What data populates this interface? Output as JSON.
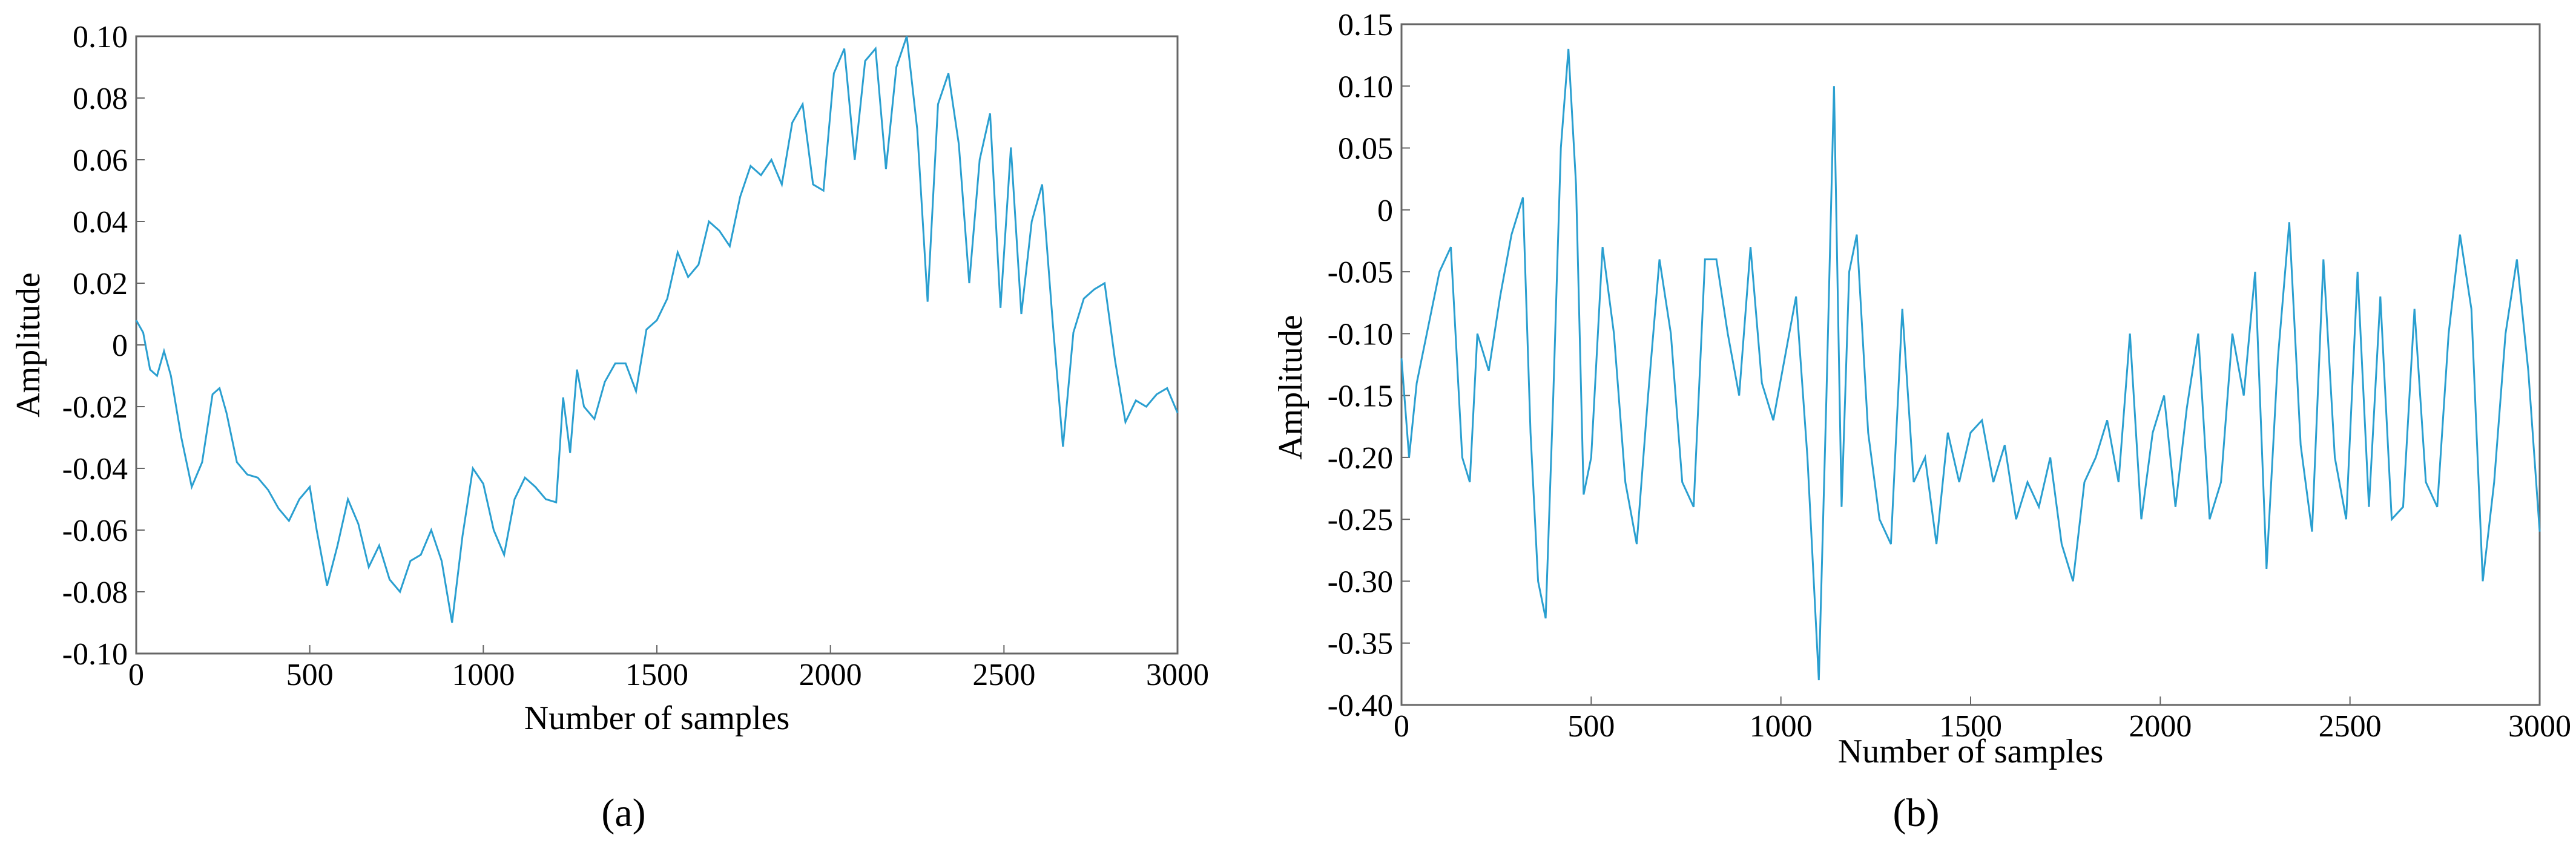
{
  "figure": {
    "panel_labels": [
      "(a)",
      "(b)"
    ]
  },
  "chart_data": [
    {
      "type": "line",
      "panel": "(a)",
      "title": "",
      "xlabel": "Number of samples",
      "ylabel": "Amplitude",
      "xlim": [
        0,
        3000
      ],
      "ylim": [
        -0.1,
        0.1
      ],
      "xticks": [
        0,
        500,
        1000,
        1500,
        2000,
        2500,
        3000
      ],
      "xtick_labels": [
        "0",
        "500",
        "1000",
        "1500",
        "2000",
        "2500",
        "3000"
      ],
      "yticks": [
        -0.1,
        -0.08,
        -0.06,
        -0.04,
        -0.02,
        0,
        0.02,
        0.04,
        0.06,
        0.08,
        0.1
      ],
      "ytick_labels": [
        "-0.10",
        "-0.08",
        "-0.06",
        "-0.04",
        "-0.02",
        "0",
        "0.02",
        "0.04",
        "0.06",
        "0.08",
        "0.10"
      ],
      "grid": false,
      "color": "#2a9fd0",
      "series": [
        {
          "x": [
            0,
            20,
            40,
            60,
            80,
            100,
            130,
            160,
            190,
            220,
            240,
            260,
            290,
            320,
            350,
            380,
            410,
            440,
            470,
            500,
            520,
            550,
            580,
            610,
            640,
            670,
            700,
            730,
            760,
            790,
            820,
            850,
            880,
            910,
            940,
            970,
            1000,
            1030,
            1060,
            1090,
            1120,
            1150,
            1180,
            1210,
            1230,
            1250,
            1270,
            1290,
            1320,
            1350,
            1380,
            1410,
            1440,
            1470,
            1500,
            1530,
            1560,
            1590,
            1620,
            1650,
            1680,
            1710,
            1740,
            1770,
            1800,
            1830,
            1860,
            1890,
            1920,
            1950,
            1980,
            2010,
            2040,
            2070,
            2100,
            2130,
            2160,
            2190,
            2220,
            2250,
            2280,
            2310,
            2340,
            2370,
            2400,
            2430,
            2460,
            2490,
            2520,
            2550,
            2580,
            2610,
            2640,
            2670,
            2700,
            2730,
            2760,
            2790,
            2820,
            2850,
            2880,
            2910,
            2940,
            2970,
            3000
          ],
          "y": [
            0.008,
            0.004,
            -0.008,
            -0.01,
            -0.002,
            -0.01,
            -0.03,
            -0.046,
            -0.038,
            -0.016,
            -0.014,
            -0.022,
            -0.038,
            -0.042,
            -0.043,
            -0.047,
            -0.053,
            -0.057,
            -0.05,
            -0.046,
            -0.06,
            -0.078,
            -0.065,
            -0.05,
            -0.058,
            -0.072,
            -0.065,
            -0.076,
            -0.08,
            -0.07,
            -0.068,
            -0.06,
            -0.07,
            -0.09,
            -0.062,
            -0.04,
            -0.045,
            -0.06,
            -0.068,
            -0.05,
            -0.043,
            -0.046,
            -0.05,
            -0.051,
            -0.017,
            -0.035,
            -0.008,
            -0.02,
            -0.024,
            -0.012,
            -0.006,
            -0.006,
            -0.015,
            0.005,
            0.008,
            0.015,
            0.03,
            0.022,
            0.026,
            0.04,
            0.037,
            0.032,
            0.048,
            0.058,
            0.055,
            0.06,
            0.052,
            0.072,
            0.078,
            0.052,
            0.05,
            0.088,
            0.096,
            0.06,
            0.092,
            0.096,
            0.057,
            0.09,
            0.1,
            0.07,
            0.014,
            0.078,
            0.088,
            0.065,
            0.02,
            0.06,
            0.075,
            0.012,
            0.064,
            0.01,
            0.04,
            0.052,
            0.008,
            -0.033,
            0.004,
            0.015,
            0.018,
            0.02,
            -0.005,
            -0.025,
            -0.018,
            -0.02,
            -0.016,
            -0.014,
            -0.022
          ]
        }
      ]
    },
    {
      "type": "line",
      "panel": "(b)",
      "title": "",
      "xlabel": "Number of samples",
      "ylabel": "Amplitude",
      "xlim": [
        0,
        3000
      ],
      "ylim": [
        -0.4,
        0.15
      ],
      "xticks": [
        0,
        500,
        1000,
        1500,
        2000,
        2500,
        3000
      ],
      "xtick_labels": [
        "0",
        "500",
        "1000",
        "1500",
        "2000",
        "2500",
        "3000"
      ],
      "yticks": [
        -0.4,
        -0.35,
        -0.3,
        -0.25,
        -0.2,
        -0.15,
        -0.1,
        -0.05,
        0,
        0.05,
        0.1,
        0.15
      ],
      "ytick_labels": [
        "-0.40",
        "-0.35",
        "-0.30",
        "-0.25",
        "-0.20",
        "-0.15",
        "-0.10",
        "-0.05",
        "0",
        "0.05",
        "0.10",
        "0.15"
      ],
      "grid": false,
      "color": "#2a9fd0",
      "series": [
        {
          "x": [
            0,
            20,
            40,
            60,
            80,
            100,
            130,
            160,
            180,
            200,
            230,
            260,
            290,
            320,
            340,
            360,
            380,
            400,
            420,
            440,
            460,
            480,
            500,
            530,
            560,
            590,
            620,
            650,
            680,
            710,
            740,
            770,
            800,
            830,
            860,
            890,
            920,
            950,
            980,
            1010,
            1040,
            1070,
            1100,
            1120,
            1140,
            1160,
            1180,
            1200,
            1230,
            1260,
            1290,
            1320,
            1350,
            1380,
            1410,
            1440,
            1470,
            1500,
            1530,
            1560,
            1590,
            1620,
            1650,
            1680,
            1710,
            1740,
            1770,
            1800,
            1830,
            1860,
            1890,
            1920,
            1950,
            1980,
            2010,
            2040,
            2070,
            2100,
            2130,
            2160,
            2190,
            2220,
            2250,
            2280,
            2310,
            2340,
            2370,
            2400,
            2430,
            2460,
            2490,
            2520,
            2550,
            2580,
            2610,
            2640,
            2670,
            2700,
            2730,
            2760,
            2790,
            2820,
            2850,
            2880,
            2910,
            2940,
            2970,
            3000
          ],
          "y": [
            -0.12,
            -0.2,
            -0.14,
            -0.11,
            -0.08,
            -0.05,
            -0.03,
            -0.2,
            -0.22,
            -0.1,
            -0.13,
            -0.07,
            -0.02,
            0.01,
            -0.18,
            -0.3,
            -0.33,
            -0.15,
            0.05,
            0.13,
            0.02,
            -0.23,
            -0.2,
            -0.03,
            -0.1,
            -0.22,
            -0.27,
            -0.15,
            -0.04,
            -0.1,
            -0.22,
            -0.24,
            -0.04,
            -0.04,
            -0.1,
            -0.15,
            -0.03,
            -0.14,
            -0.17,
            -0.12,
            -0.07,
            -0.2,
            -0.38,
            -0.15,
            0.1,
            -0.24,
            -0.05,
            -0.02,
            -0.18,
            -0.25,
            -0.27,
            -0.08,
            -0.22,
            -0.2,
            -0.27,
            -0.18,
            -0.22,
            -0.18,
            -0.17,
            -0.22,
            -0.19,
            -0.25,
            -0.22,
            -0.24,
            -0.2,
            -0.27,
            -0.3,
            -0.22,
            -0.2,
            -0.17,
            -0.22,
            -0.1,
            -0.25,
            -0.18,
            -0.15,
            -0.24,
            -0.16,
            -0.1,
            -0.25,
            -0.22,
            -0.1,
            -0.15,
            -0.05,
            -0.29,
            -0.12,
            -0.01,
            -0.19,
            -0.26,
            -0.04,
            -0.2,
            -0.25,
            -0.05,
            -0.24,
            -0.07,
            -0.25,
            -0.24,
            -0.08,
            -0.22,
            -0.24,
            -0.1,
            -0.02,
            -0.08,
            -0.3,
            -0.22,
            -0.1,
            -0.04,
            -0.13,
            -0.26
          ]
        }
      ]
    }
  ]
}
